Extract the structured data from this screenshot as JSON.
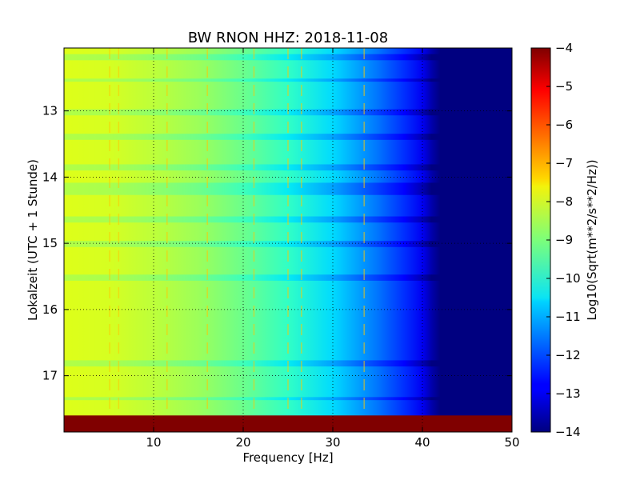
{
  "chart_data": {
    "type": "heatmap",
    "title": "BW RNON HHZ: 2018-11-08",
    "xlabel": "Frequency [Hz]",
    "ylabel": "Lokalzeit (UTC + 1 Stunde)",
    "xlim": [
      0,
      50
    ],
    "ylim": [
      17.85,
      12.05
    ],
    "y_inverted": true,
    "grid": true,
    "x_ticks": [
      10,
      20,
      30,
      40,
      50
    ],
    "y_ticks": [
      13,
      14,
      15,
      16,
      17
    ],
    "colorbar": {
      "label": "Log10(Sqrt(m**2/s**2/Hz))",
      "vmin": -14,
      "vmax": -4,
      "colormap": "jet",
      "ticks": [
        -4,
        -5,
        -6,
        -7,
        -8,
        -9,
        -10,
        -11,
        -12,
        -13,
        -14
      ],
      "tick_labels": [
        "−4",
        "−5",
        "−6",
        "−7",
        "−8",
        "−9",
        "−10",
        "−11",
        "−12",
        "−13",
        "−14"
      ]
    },
    "spectrum_profile": {
      "frequency_hz": [
        0,
        5,
        10,
        15,
        20,
        25,
        30,
        35,
        38,
        40,
        41,
        42,
        45,
        50
      ],
      "log10_amplitude": [
        -7.8,
        -7.9,
        -8.2,
        -8.6,
        -9.2,
        -9.9,
        -10.6,
        -11.6,
        -12.3,
        -13.0,
        -13.6,
        -14.0,
        -14.0,
        -14.0
      ]
    },
    "spectral_lines_hz": [
      5.1,
      6.1,
      11.5,
      16.0,
      21.2,
      25.0,
      26.5,
      33.5
    ],
    "broadband_bands_hour": [
      12.16,
      12.51,
      12.99,
      13.35,
      13.82,
      14.09,
      14.21,
      14.61,
      14.99,
      15.48,
      16.78,
      17.32
    ],
    "saturated_band": {
      "from_hour": 17.6,
      "to_hour": 17.85,
      "log10_amplitude": -4
    }
  }
}
